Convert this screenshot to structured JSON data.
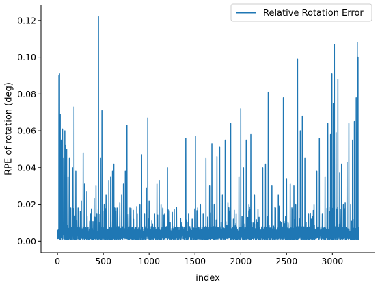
{
  "chart_data": {
    "type": "line",
    "title": "",
    "xlabel": "index",
    "ylabel": "RPE of rotation (deg)",
    "xlim": [
      -180,
      3460
    ],
    "ylim": [
      -0.0062,
      0.1285
    ],
    "x_ticks": [
      0,
      500,
      1000,
      1500,
      2000,
      2500,
      3000
    ],
    "x_tick_labels": [
      "0",
      "500",
      "1000",
      "1500",
      "2000",
      "2500",
      "3000"
    ],
    "y_ticks": [
      0.0,
      0.02,
      0.04,
      0.06,
      0.08,
      0.1,
      0.12
    ],
    "y_tick_labels": [
      "0.00",
      "0.02",
      "0.04",
      "0.06",
      "0.08",
      "0.10",
      "0.12"
    ],
    "grid": false,
    "legend_position": "top-right",
    "series": [
      {
        "name": "Relative Rotation Error",
        "color": "#1f77b4",
        "n_points": 3290,
        "baseline_range": [
          0.001,
          0.008
        ],
        "peaks": [
          [
            5,
            0.006
          ],
          [
            15,
            0.09
          ],
          [
            22,
            0.091
          ],
          [
            30,
            0.069
          ],
          [
            40,
            0.055
          ],
          [
            55,
            0.061
          ],
          [
            68,
            0.045
          ],
          [
            80,
            0.06
          ],
          [
            88,
            0.052
          ],
          [
            100,
            0.05
          ],
          [
            115,
            0.035
          ],
          [
            130,
            0.045
          ],
          [
            145,
            0.018
          ],
          [
            165,
            0.04
          ],
          [
            180,
            0.073
          ],
          [
            200,
            0.038
          ],
          [
            225,
            0.018
          ],
          [
            260,
            0.022
          ],
          [
            280,
            0.048
          ],
          [
            295,
            0.031
          ],
          [
            320,
            0.027
          ],
          [
            360,
            0.015
          ],
          [
            400,
            0.023
          ],
          [
            420,
            0.03
          ],
          [
            447,
            0.122
          ],
          [
            470,
            0.045
          ],
          [
            485,
            0.071
          ],
          [
            510,
            0.02
          ],
          [
            530,
            0.025
          ],
          [
            560,
            0.033
          ],
          [
            580,
            0.035
          ],
          [
            600,
            0.038
          ],
          [
            615,
            0.042
          ],
          [
            650,
            0.018
          ],
          [
            680,
            0.021
          ],
          [
            700,
            0.025
          ],
          [
            720,
            0.031
          ],
          [
            740,
            0.038
          ],
          [
            758,
            0.063
          ],
          [
            790,
            0.018
          ],
          [
            830,
            0.012
          ],
          [
            870,
            0.015
          ],
          [
            900,
            0.02
          ],
          [
            918,
            0.047
          ],
          [
            950,
            0.015
          ],
          [
            970,
            0.029
          ],
          [
            985,
            0.067
          ],
          [
            1000,
            0.022
          ],
          [
            1030,
            0.011
          ],
          [
            1060,
            0.015
          ],
          [
            1085,
            0.031
          ],
          [
            1110,
            0.033
          ],
          [
            1130,
            0.02
          ],
          [
            1150,
            0.018
          ],
          [
            1170,
            0.015
          ],
          [
            1200,
            0.04
          ],
          [
            1230,
            0.01
          ],
          [
            1270,
            0.008
          ],
          [
            1300,
            0.009
          ],
          [
            1350,
            0.01
          ],
          [
            1400,
            0.056
          ],
          [
            1430,
            0.015
          ],
          [
            1470,
            0.012
          ],
          [
            1505,
            0.057
          ],
          [
            1530,
            0.018
          ],
          [
            1560,
            0.02
          ],
          [
            1590,
            0.015
          ],
          [
            1620,
            0.045
          ],
          [
            1660,
            0.03
          ],
          [
            1685,
            0.053
          ],
          [
            1710,
            0.02
          ],
          [
            1740,
            0.046
          ],
          [
            1770,
            0.051
          ],
          [
            1800,
            0.025
          ],
          [
            1830,
            0.055
          ],
          [
            1860,
            0.021
          ],
          [
            1890,
            0.064
          ],
          [
            1920,
            0.012
          ],
          [
            1950,
            0.015
          ],
          [
            1980,
            0.035
          ],
          [
            2000,
            0.072
          ],
          [
            2030,
            0.04
          ],
          [
            2060,
            0.055
          ],
          [
            2090,
            0.02
          ],
          [
            2110,
            0.058
          ],
          [
            2150,
            0.025
          ],
          [
            2180,
            0.01
          ],
          [
            2200,
            0.013
          ],
          [
            2240,
            0.04
          ],
          [
            2270,
            0.042
          ],
          [
            2300,
            0.081
          ],
          [
            2340,
            0.03
          ],
          [
            2380,
            0.018
          ],
          [
            2410,
            0.025
          ],
          [
            2440,
            0.01
          ],
          [
            2465,
            0.078
          ],
          [
            2500,
            0.034
          ],
          [
            2540,
            0.031
          ],
          [
            2580,
            0.03
          ],
          [
            2600,
            0.02
          ],
          [
            2620,
            0.099
          ],
          [
            2650,
            0.06
          ],
          [
            2672,
            0.068
          ],
          [
            2700,
            0.045
          ],
          [
            2740,
            0.015
          ],
          [
            2770,
            0.012
          ],
          [
            2800,
            0.02
          ],
          [
            2830,
            0.038
          ],
          [
            2858,
            0.056
          ],
          [
            2890,
            0.015
          ],
          [
            2920,
            0.035
          ],
          [
            2950,
            0.064
          ],
          [
            2980,
            0.058
          ],
          [
            2995,
            0.091
          ],
          [
            3010,
            0.075
          ],
          [
            3022,
            0.107
          ],
          [
            3040,
            0.059
          ],
          [
            3060,
            0.088
          ],
          [
            3080,
            0.037
          ],
          [
            3100,
            0.042
          ],
          [
            3120,
            0.02
          ],
          [
            3140,
            0.021
          ],
          [
            3160,
            0.043
          ],
          [
            3180,
            0.064
          ],
          [
            3200,
            0.02
          ],
          [
            3220,
            0.055
          ],
          [
            3240,
            0.065
          ],
          [
            3260,
            0.078
          ],
          [
            3272,
            0.108
          ],
          [
            3280,
            0.1
          ],
          [
            3289,
            0.005
          ]
        ]
      }
    ]
  }
}
